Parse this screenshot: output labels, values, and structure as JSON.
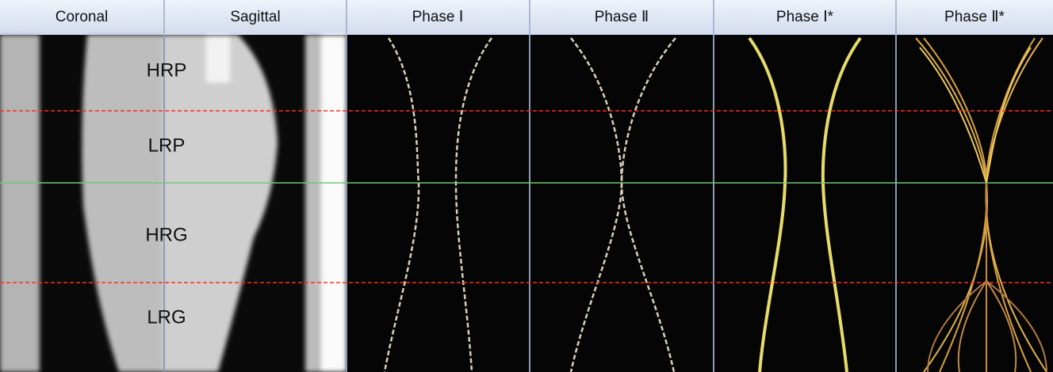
{
  "header": {
    "columns": [
      "Coronal",
      "Sagittal",
      "Phase Ⅰ",
      "Phase Ⅱ",
      "Phase Ⅰ*",
      "Phase Ⅱ*"
    ]
  },
  "regions": [
    "HRP",
    "LRP",
    "HRG",
    "LRG"
  ]
}
